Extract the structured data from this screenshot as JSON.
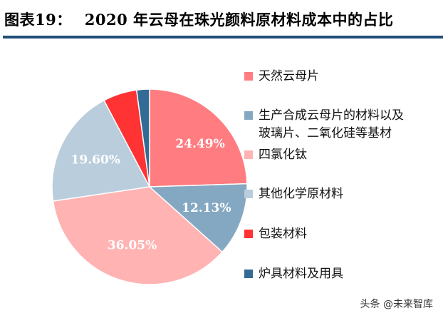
{
  "chart_data": {
    "type": "pie",
    "title_prefix": "图表19：",
    "title": "2020 年云母在珠光颜料原材料成本中的占比",
    "slices": [
      {
        "label": "天然云母片",
        "value": 24.49,
        "display": "24.49%",
        "color": "#ff7c80"
      },
      {
        "label": "生产合成云母片的材料以及玻璃片、二氧化硅等基材",
        "value": 12.13,
        "display": "12.13%",
        "color": "#84a8c2"
      },
      {
        "label": "四氯化钛",
        "value": 36.05,
        "display": "36.05%",
        "color": "#ffb3b3"
      },
      {
        "label": "其他化学原材料",
        "value": 19.6,
        "display": "19.60%",
        "color": "#b9cddd"
      },
      {
        "label": "包装材料",
        "value": 5.6,
        "display": "",
        "color": "#ff3333"
      },
      {
        "label": "炉具材料及用具",
        "value": 2.13,
        "display": "",
        "color": "#336b94"
      }
    ],
    "start_angle": "12 o'clock",
    "direction": "clockwise",
    "legend_position": "right"
  },
  "legend_lines": [
    [
      "天然云母片"
    ],
    [
      "生产合成云母片的材料以及",
      "玻璃片、二氧化硅等基材"
    ],
    [
      "四氯化钛"
    ],
    [
      "其他化学原材料"
    ],
    [
      "包装材料"
    ],
    [
      "炉具材料及用具"
    ]
  ],
  "watermark": "头条 @未来智库"
}
